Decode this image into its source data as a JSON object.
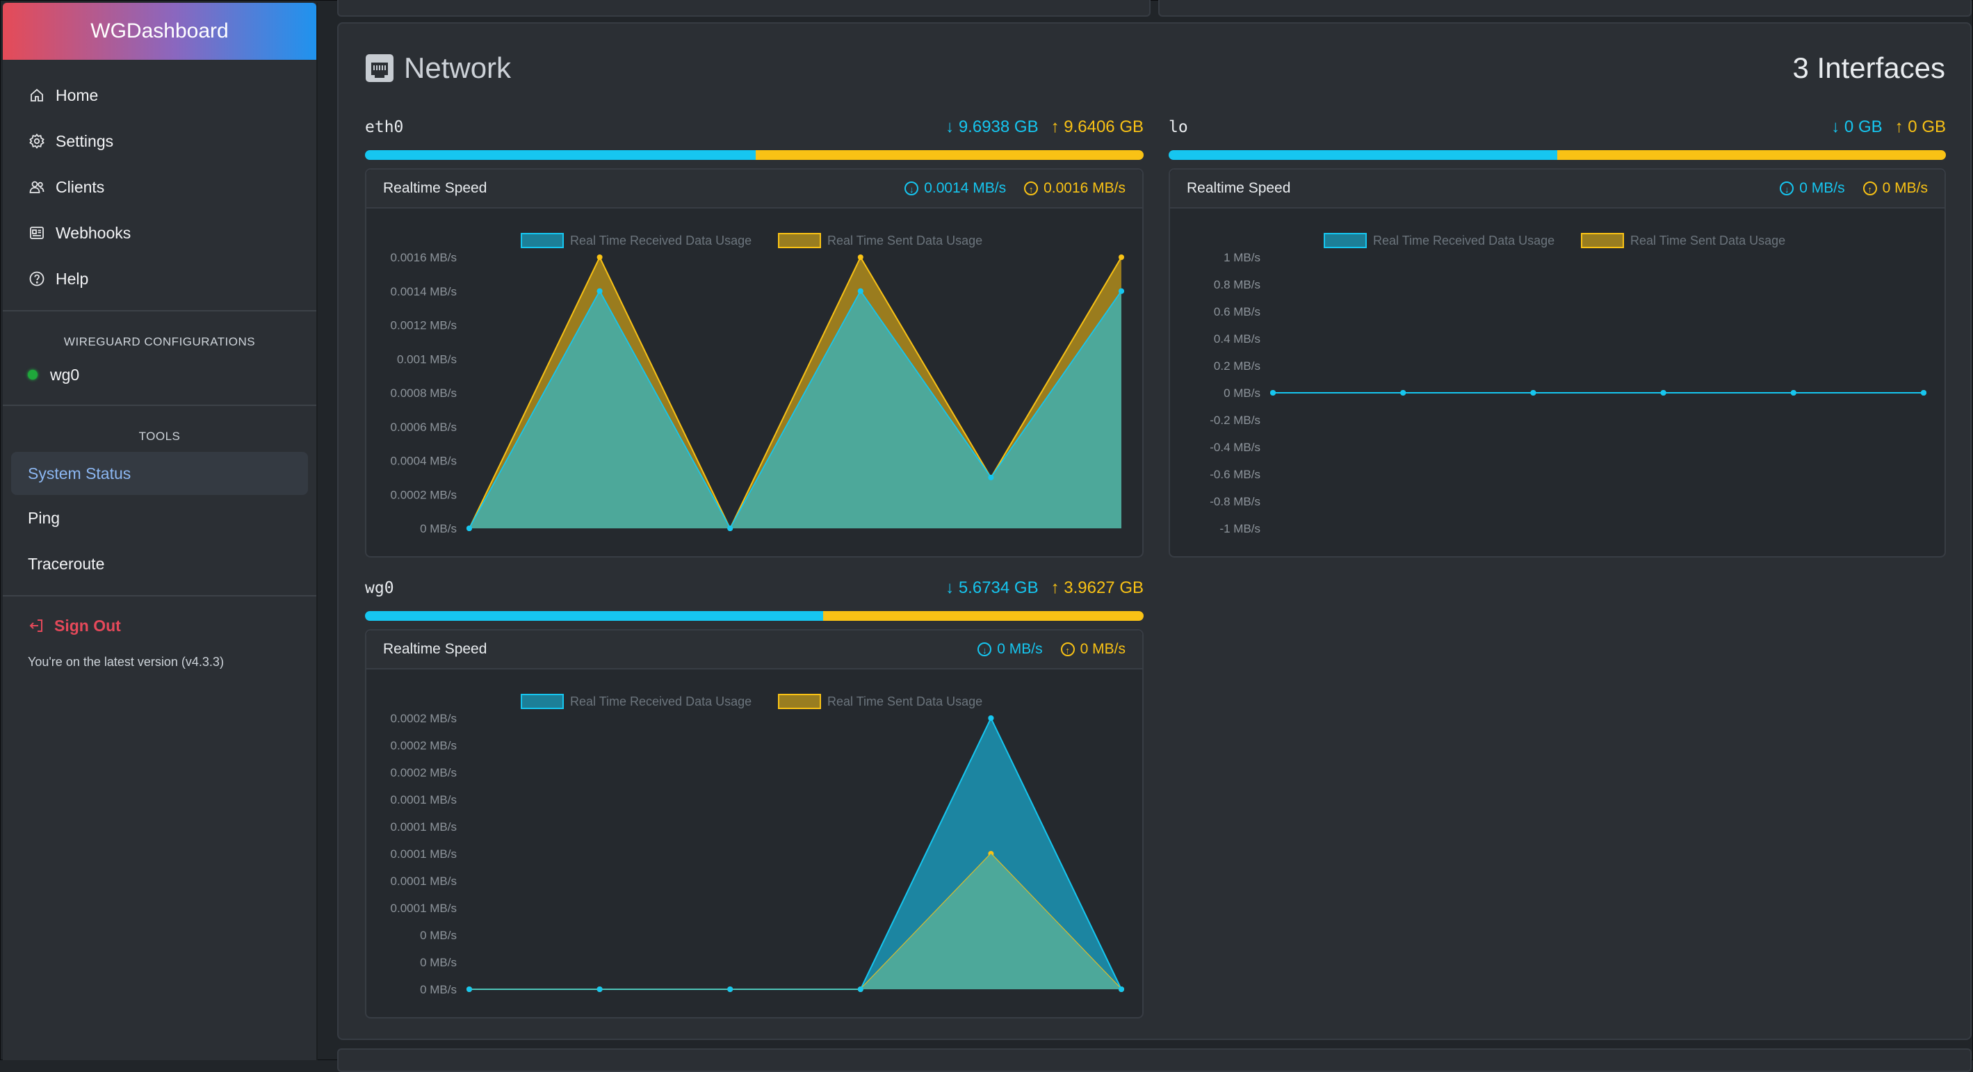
{
  "app": {
    "title": "WGDashboard"
  },
  "sidebar": {
    "nav": [
      {
        "label": "Home",
        "icon": "home-icon"
      },
      {
        "label": "Settings",
        "icon": "gear-icon"
      },
      {
        "label": "Clients",
        "icon": "users-icon"
      },
      {
        "label": "Webhooks",
        "icon": "webhook-icon"
      },
      {
        "label": "Help",
        "icon": "help-icon"
      }
    ],
    "configs_title": "WIREGUARD CONFIGURATIONS",
    "configs": [
      {
        "name": "wg0",
        "status": "running"
      }
    ],
    "tools_title": "TOOLS",
    "tools": [
      {
        "label": "System Status",
        "active": true
      },
      {
        "label": "Ping",
        "active": false
      },
      {
        "label": "Traceroute",
        "active": false
      }
    ],
    "sign_out": "Sign Out",
    "version_text": "You're on the latest version (v4.3.3)"
  },
  "network": {
    "title": "Network",
    "interface_count": "3 Interfaces",
    "interfaces": [
      {
        "name": "eth0",
        "rx_total": "9.6938 GB",
        "tx_total": "9.6406 GB",
        "rx_fraction": 0.5014,
        "speed_title": "Realtime Speed",
        "rx_speed": "0.0014 MB/s",
        "tx_speed": "0.0016 MB/s",
        "chart_data": {
          "type": "area",
          "legend": [
            "Real Time Received Data Usage",
            "Real Time Sent Data Usage"
          ],
          "y_ticks": [
            "0.0016 MB/s",
            "0.0014 MB/s",
            "0.0012 MB/s",
            "0.001 MB/s",
            "0.0008 MB/s",
            "0.0006 MB/s",
            "0.0004 MB/s",
            "0.0002 MB/s",
            "0 MB/s"
          ],
          "ylim": [
            0,
            0.0016
          ],
          "series": [
            {
              "name": "Real Time Received Data Usage",
              "values": [
                0,
                0.0014,
                0,
                0.0014,
                0.0003,
                0.0014
              ]
            },
            {
              "name": "Real Time Sent Data Usage",
              "values": [
                0,
                0.0016,
                0,
                0.0016,
                0.0003,
                0.0016
              ]
            }
          ]
        }
      },
      {
        "name": "lo",
        "rx_total": "0 GB",
        "tx_total": "0 GB",
        "rx_fraction": 0.5,
        "speed_title": "Realtime Speed",
        "rx_speed": "0 MB/s",
        "tx_speed": "0 MB/s",
        "chart_data": {
          "type": "area",
          "legend": [
            "Real Time Received Data Usage",
            "Real Time Sent Data Usage"
          ],
          "y_ticks": [
            "1 MB/s",
            "0.8 MB/s",
            "0.6 MB/s",
            "0.4 MB/s",
            "0.2 MB/s",
            "0 MB/s",
            "-0.2 MB/s",
            "-0.4 MB/s",
            "-0.6 MB/s",
            "-0.8 MB/s",
            "-1 MB/s"
          ],
          "ylim": [
            -1,
            1
          ],
          "series": [
            {
              "name": "Real Time Received Data Usage",
              "values": [
                0,
                0,
                0,
                0,
                0,
                0
              ]
            },
            {
              "name": "Real Time Sent Data Usage",
              "values": [
                0,
                0,
                0,
                0,
                0,
                0
              ]
            }
          ]
        }
      },
      {
        "name": "wg0",
        "rx_total": "5.6734 GB",
        "tx_total": "3.9627 GB",
        "rx_fraction": 0.5888,
        "speed_title": "Realtime Speed",
        "rx_speed": "0 MB/s",
        "tx_speed": "0 MB/s",
        "chart_data": {
          "type": "area",
          "legend": [
            "Real Time Received Data Usage",
            "Real Time Sent Data Usage"
          ],
          "y_ticks": [
            "0.0002 MB/s",
            "0.0002 MB/s",
            "0.0002 MB/s",
            "0.0001 MB/s",
            "0.0001 MB/s",
            "0.0001 MB/s",
            "0.0001 MB/s",
            "0.0001 MB/s",
            "0 MB/s",
            "0 MB/s",
            "0 MB/s"
          ],
          "ylim": [
            0,
            0.0002
          ],
          "series": [
            {
              "name": "Real Time Received Data Usage",
              "values": [
                0,
                0,
                0,
                0,
                0.0002,
                0
              ]
            },
            {
              "name": "Real Time Sent Data Usage",
              "values": [
                0,
                0,
                0,
                0,
                0.0001,
                0
              ]
            }
          ]
        }
      }
    ]
  },
  "colors": {
    "accent_rx": "#16c6f0",
    "accent_tx": "#f9c215",
    "danger": "#e5495a",
    "status_running": "#1fa83b"
  }
}
